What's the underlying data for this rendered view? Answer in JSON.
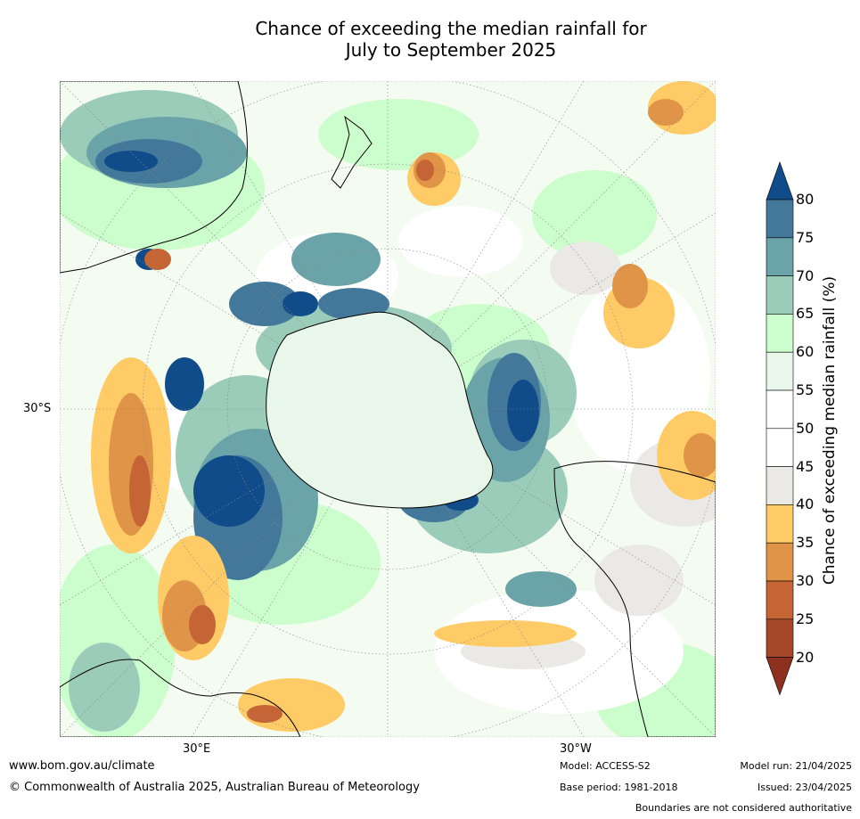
{
  "title_line1": "Chance of exceeding the median rainfall for",
  "title_line2": "July to September 2025",
  "map": {
    "projection": "south-polar",
    "lat_labels": [
      "30°S"
    ],
    "lon_labels": [
      "30°E",
      "30°W"
    ]
  },
  "colorbar": {
    "label": "Chance of exceeding median rainfall (%)",
    "ticks": [
      "80",
      "75",
      "70",
      "65",
      "60",
      "55",
      "50",
      "45",
      "40",
      "35",
      "30",
      "25",
      "20"
    ],
    "colors": {
      "above80": "#0f4c89",
      "c75_80": "#44789b",
      "c70_75": "#6aa3a8",
      "c65_70": "#9bcbb9",
      "c60_65": "#ccfdcc",
      "c55_60": "#e9f7ea",
      "c50_55": "#ffffff",
      "c45_50": "#ffffff",
      "c40_45": "#ebe9e5",
      "c35_40": "#fecb66",
      "c30_35": "#e09447",
      "c25_30": "#c56434",
      "c20_25": "#a44829",
      "below20": "#8c3020"
    }
  },
  "footer": {
    "url": "www.bom.gov.au/climate",
    "copyright": "© Commonwealth of Australia 2025, Australian Bureau of Meteorology",
    "model": "Model: ACCESS-S2",
    "base_period": "Base period: 1981-2018",
    "model_run": "Model run: 21/04/2025",
    "issued": "Issued: 23/04/2025",
    "disclaimer": "Boundaries are not considered authoritative"
  }
}
